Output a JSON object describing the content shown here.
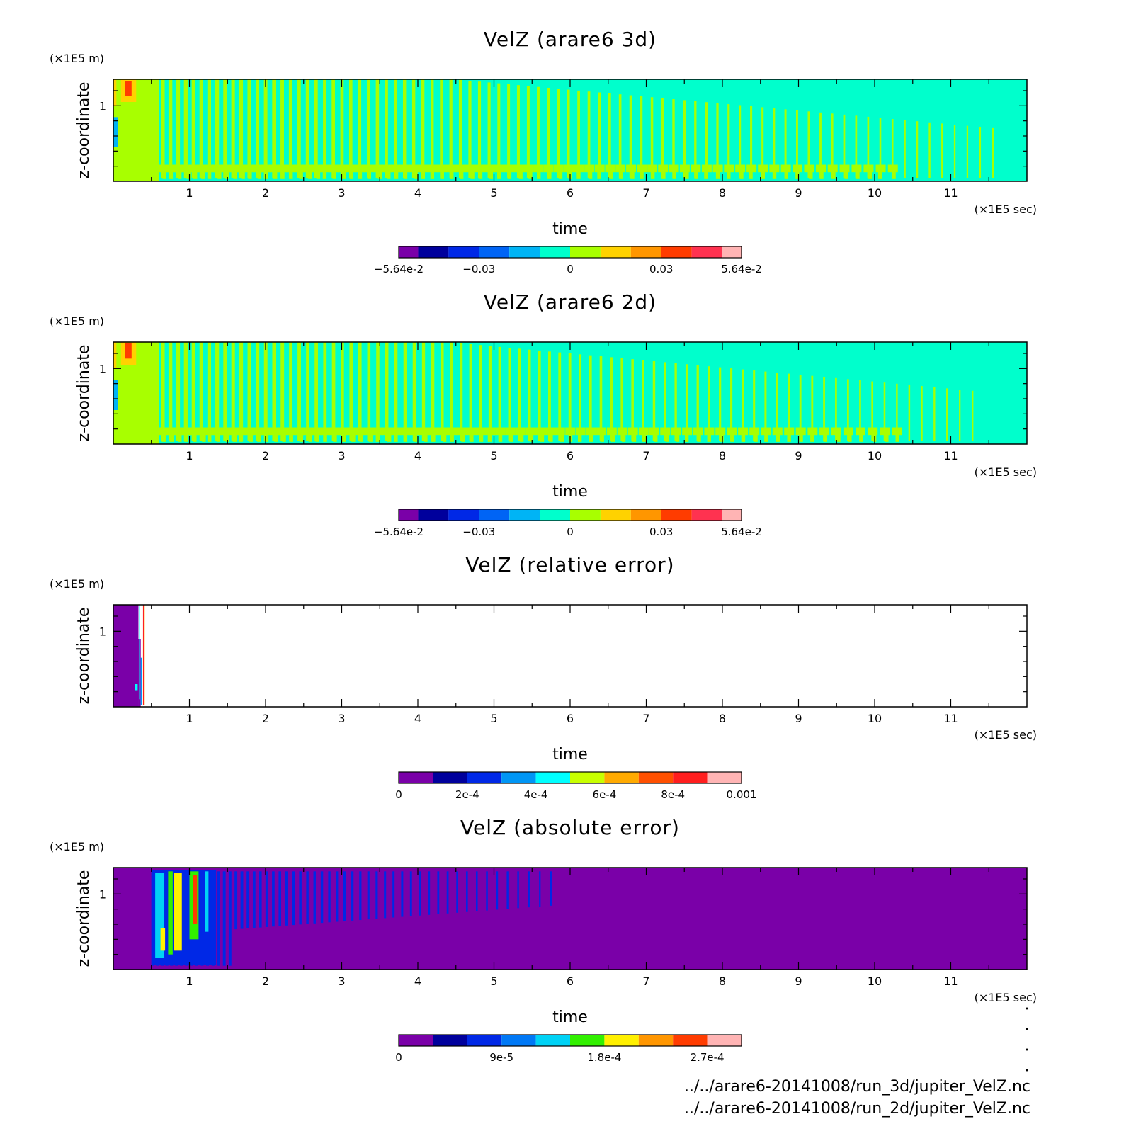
{
  "chart_data": [
    {
      "type": "heatmap",
      "title": "VelZ (arare6 3d)",
      "xlabel": "time",
      "ylabel": "z-coordinate",
      "x_unit": "(×1E5 sec)",
      "y_unit": "(×1E5 m)",
      "xlim": [
        0,
        12
      ],
      "ylim": [
        0,
        1.35
      ],
      "x_ticks": [
        "1",
        "2",
        "3",
        "4",
        "5",
        "6",
        "7",
        "8",
        "9",
        "10",
        "11"
      ],
      "y_ticks": [
        "1"
      ],
      "pattern": "bands-3d",
      "colorbar": {
        "range": [
          -0.0564,
          0.0564
        ],
        "colors": [
          "#7a00a8",
          "#00009c",
          "#0028e6",
          "#0064f5",
          "#00b4f5",
          "#00ffcc",
          "#a8ff00",
          "#ffd200",
          "#ff9600",
          "#ff3c00",
          "#ff3250",
          "#ffb4b4"
        ],
        "tick_labels": [
          "-5.64e-2",
          "-0.03",
          "0",
          "0.03",
          "5.64e-2"
        ]
      }
    },
    {
      "type": "heatmap",
      "title": "VelZ (arare6 2d)",
      "xlabel": "time",
      "ylabel": "z-coordinate",
      "x_unit": "(×1E5 sec)",
      "y_unit": "(×1E5 m)",
      "xlim": [
        0,
        12
      ],
      "ylim": [
        0,
        1.35
      ],
      "x_ticks": [
        "1",
        "2",
        "3",
        "4",
        "5",
        "6",
        "7",
        "8",
        "9",
        "10",
        "11"
      ],
      "y_ticks": [
        "1"
      ],
      "pattern": "bands-2d",
      "colorbar": {
        "range": [
          -0.0564,
          0.0564
        ],
        "colors": [
          "#7a00a8",
          "#00009c",
          "#0028e6",
          "#0064f5",
          "#00b4f5",
          "#00ffcc",
          "#a8ff00",
          "#ffd200",
          "#ff9600",
          "#ff3c00",
          "#ff3250",
          "#ffb4b4"
        ],
        "tick_labels": [
          "-5.64e-2",
          "-0.03",
          "0",
          "0.03",
          "5.64e-2"
        ]
      }
    },
    {
      "type": "heatmap",
      "title": "VelZ (relative error)",
      "xlabel": "time",
      "ylabel": "z-coordinate",
      "x_unit": "(×1E5 sec)",
      "y_unit": "(×1E5 m)",
      "xlim": [
        0,
        12
      ],
      "ylim": [
        0,
        1.35
      ],
      "x_ticks": [
        "1",
        "2",
        "3",
        "4",
        "5",
        "6",
        "7",
        "8",
        "9",
        "10",
        "11"
      ],
      "y_ticks": [
        "1"
      ],
      "pattern": "relative",
      "colorbar": {
        "range": [
          0,
          0.001
        ],
        "colors": [
          "#7a00a8",
          "#00009c",
          "#0028e6",
          "#0096f5",
          "#00ffff",
          "#c8ff00",
          "#ffaa00",
          "#ff5000",
          "#ff1e1e",
          "#ffb4b4"
        ],
        "tick_labels": [
          "0",
          "2e-4",
          "4e-4",
          "6e-4",
          "8e-4",
          "0.001"
        ]
      }
    },
    {
      "type": "heatmap",
      "title": "VelZ (absolute error)",
      "xlabel": "time",
      "ylabel": "z-coordinate",
      "x_unit": "(×1E5 sec)",
      "y_unit": "(×1E5 m)",
      "xlim": [
        0,
        12
      ],
      "ylim": [
        0,
        1.35
      ],
      "x_ticks": [
        "1",
        "2",
        "3",
        "4",
        "5",
        "6",
        "7",
        "8",
        "9",
        "10",
        "11"
      ],
      "y_ticks": [
        "1"
      ],
      "pattern": "absolute",
      "colorbar": {
        "range": [
          0,
          0.0003
        ],
        "colors": [
          "#7a00a8",
          "#00009c",
          "#0028e6",
          "#0078f5",
          "#00d2f5",
          "#32f000",
          "#fff000",
          "#ff9600",
          "#ff3c00",
          "#ffb4b4"
        ],
        "tick_labels": [
          "0",
          "9e-5",
          "1.8e-4",
          "2.7e-4"
        ]
      }
    }
  ],
  "files": [
    "../../arare6-20141008/run_3d/jupiter_VelZ.nc",
    "../../arare6-20141008/run_2d/jupiter_VelZ.nc"
  ]
}
